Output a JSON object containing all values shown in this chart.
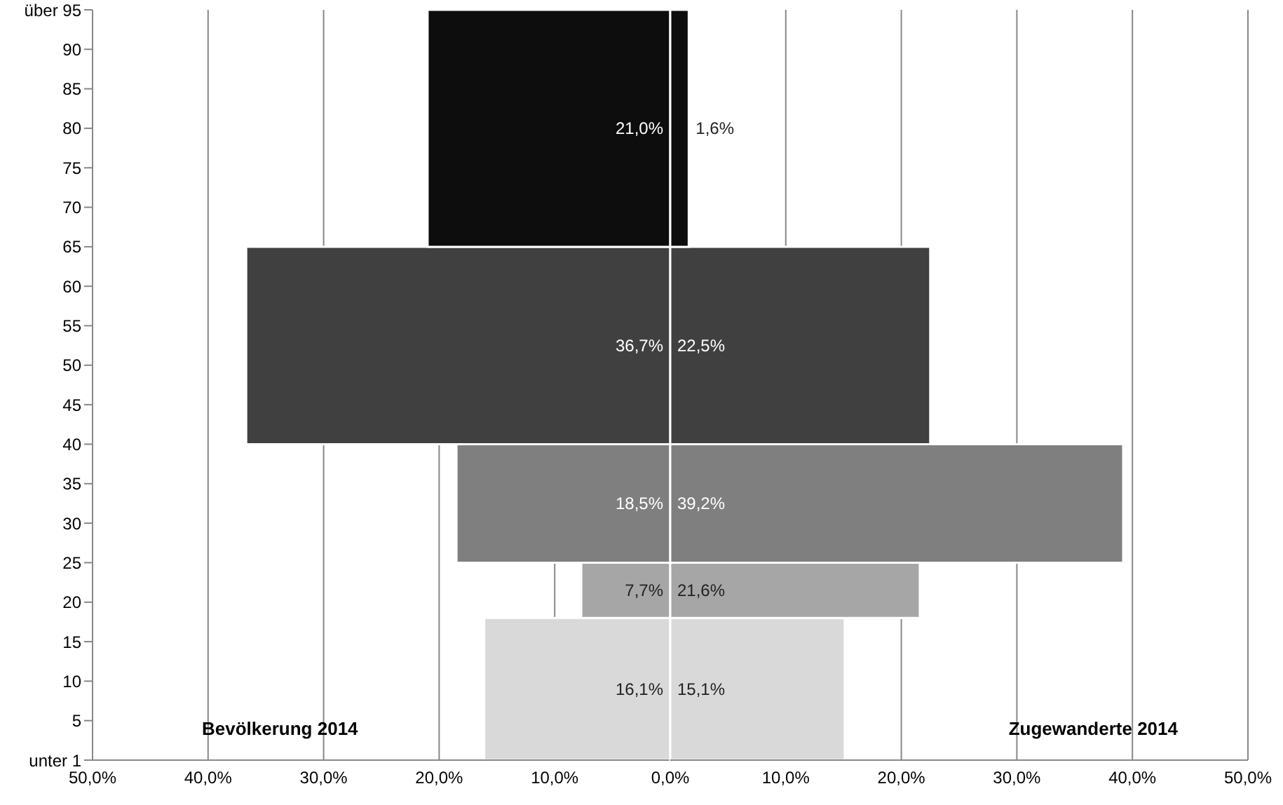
{
  "chart_data": [
    {
      "type": "histogram",
      "orientation": "horizontal",
      "title": "Bevölkerung 2014",
      "bins": [
        0,
        18,
        25,
        40,
        65,
        95
      ],
      "values": [
        16.1,
        7.7,
        18.5,
        36.7,
        21.0
      ],
      "value_labels": [
        "16,1%",
        "7,7%",
        "18,5%",
        "36,7%",
        "21,0%"
      ],
      "colors": [
        "#d9d9d9",
        "#a6a6a6",
        "#7f7f7f",
        "#404040",
        "#0d0d0d"
      ],
      "xlim": [
        50,
        0
      ],
      "xticks": [
        {
          "value": 50,
          "label": "50,0%"
        },
        {
          "value": 40,
          "label": "40,0%"
        },
        {
          "value": 30,
          "label": "30,0%"
        },
        {
          "value": 20,
          "label": "20,0%"
        },
        {
          "value": 10,
          "label": "10,0%"
        }
      ],
      "ylim": [
        0,
        95
      ],
      "yticks": [
        {
          "value": 0,
          "label": "unter 1"
        },
        5,
        10,
        15,
        20,
        25,
        30,
        35,
        40,
        45,
        50,
        55,
        60,
        65,
        70,
        75,
        80,
        85,
        90,
        {
          "value": 95,
          "label": "über 95"
        }
      ],
      "grid": "x"
    },
    {
      "type": "histogram",
      "orientation": "horizontal",
      "title": "Zugewanderte 2014",
      "bins": [
        0,
        18,
        25,
        40,
        65,
        95
      ],
      "values": [
        15.1,
        21.6,
        39.2,
        22.5,
        1.6
      ],
      "value_labels": [
        "15,1%",
        "21,6%",
        "39,2%",
        "22,5%",
        "1,6%"
      ],
      "colors": [
        "#d9d9d9",
        "#a6a6a6",
        "#7f7f7f",
        "#404040",
        "#0d0d0d"
      ],
      "xlim": [
        0,
        50
      ],
      "xticks": [
        {
          "value": 0,
          "label": "0,0%"
        },
        {
          "value": 10,
          "label": "10,0%"
        },
        {
          "value": 20,
          "label": "20,0%"
        },
        {
          "value": 30,
          "label": "30,0%"
        },
        {
          "value": 40,
          "label": "40,0%"
        },
        {
          "value": 50,
          "label": "50,0%"
        }
      ],
      "ylim": [
        0,
        95
      ],
      "grid": "x",
      "tick_labels": "x"
    }
  ]
}
